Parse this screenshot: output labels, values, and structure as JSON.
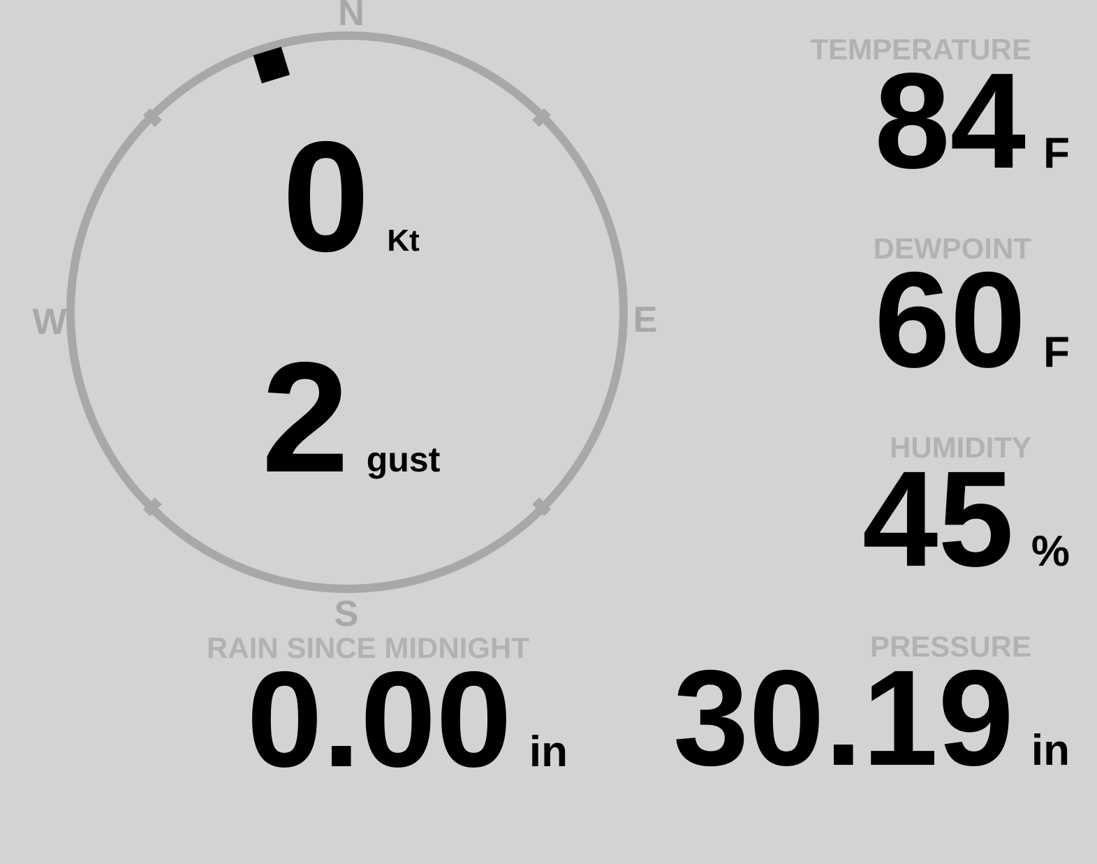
{
  "compass": {
    "cardinals": {
      "north": "N",
      "east": "E",
      "south": "S",
      "west": "W"
    },
    "wind_speed": "0",
    "wind_speed_unit": "Kt",
    "wind_gust": "2",
    "wind_gust_unit": "gust",
    "wind_direction_deg": 343
  },
  "metrics": {
    "temperature": {
      "label": "TEMPERATURE",
      "value": "84",
      "unit": "F"
    },
    "dewpoint": {
      "label": "DEWPOINT",
      "value": "60",
      "unit": "F"
    },
    "humidity": {
      "label": "HUMIDITY",
      "value": "45",
      "unit": "%"
    },
    "pressure": {
      "label": "PRESSURE",
      "value": "30.19",
      "unit": "in"
    },
    "rain_since_midnight": {
      "label": "RAIN SINCE MIDNIGHT",
      "value": "0.00",
      "unit": "in"
    }
  },
  "colors": {
    "background": "#d3d3d3",
    "compass_ring": "#a8a8a8",
    "compass_labels": "#a8a8a8",
    "metric_labels": "#b2b2b2",
    "values": "#000000",
    "marker": "#000000"
  }
}
